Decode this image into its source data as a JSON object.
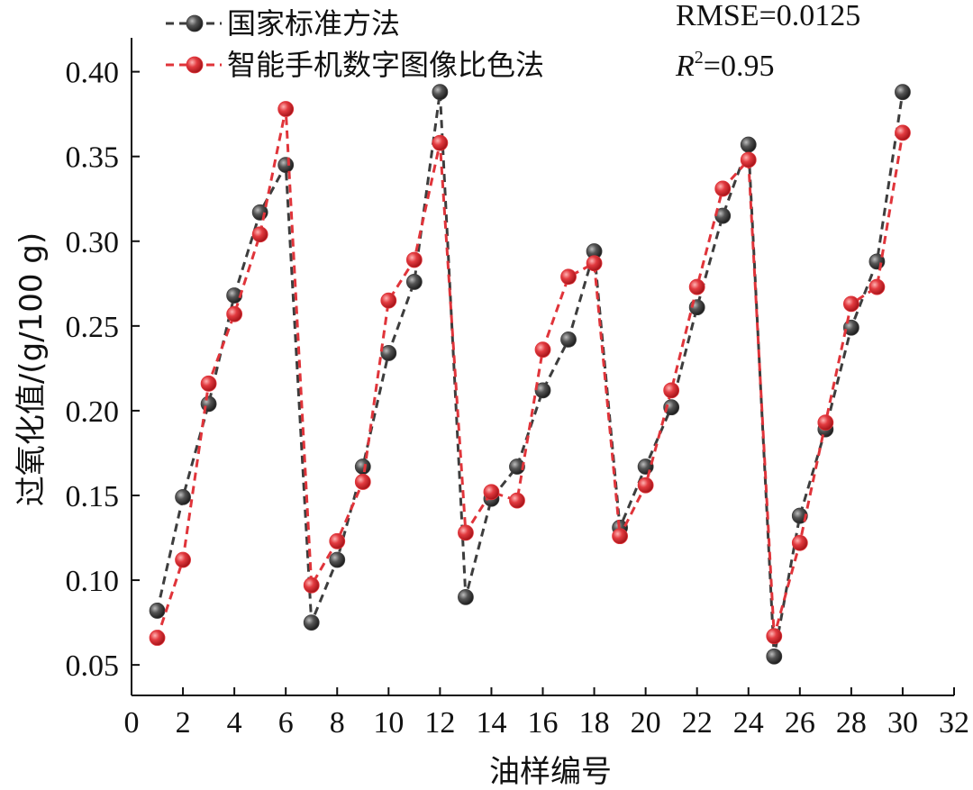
{
  "chart_data": {
    "type": "line",
    "title": "",
    "xlabel": "油样编号",
    "ylabel": "过氧化值/(g/100 g)",
    "xlim": [
      0,
      32
    ],
    "ylim": [
      0.032,
      0.42
    ],
    "xticks": [
      0,
      2,
      4,
      6,
      8,
      10,
      12,
      14,
      16,
      18,
      20,
      22,
      24,
      26,
      28,
      30,
      32
    ],
    "yticks": [
      0.05,
      0.1,
      0.15,
      0.2,
      0.25,
      0.3,
      0.35,
      0.4
    ],
    "ytick_labels": [
      "0.05",
      "0.10",
      "0.15",
      "0.20",
      "0.25",
      "0.30",
      "0.35",
      "0.40"
    ],
    "grid": false,
    "legend_position": "top-left",
    "x": [
      1,
      2,
      3,
      4,
      5,
      6,
      7,
      8,
      9,
      10,
      11,
      12,
      13,
      14,
      15,
      16,
      17,
      18,
      19,
      20,
      21,
      22,
      23,
      24,
      25,
      26,
      27,
      28,
      29,
      30
    ],
    "series": [
      {
        "name": "国家标准方法",
        "color": "#3d3d3d",
        "marker_color": "#4a4a4a",
        "values": [
          0.082,
          0.149,
          0.204,
          0.268,
          0.317,
          0.345,
          0.075,
          0.112,
          0.167,
          0.234,
          0.276,
          0.388,
          0.09,
          0.148,
          0.167,
          0.212,
          0.242,
          0.294,
          0.131,
          0.167,
          0.202,
          0.261,
          0.315,
          0.357,
          0.055,
          0.138,
          0.189,
          0.249,
          0.288,
          0.388
        ]
      },
      {
        "name": "智能手机数字图像比色法",
        "color": "#e0343a",
        "marker_color": "#e0343a",
        "values": [
          0.066,
          0.112,
          0.216,
          0.257,
          0.304,
          0.378,
          0.097,
          0.123,
          0.158,
          0.265,
          0.289,
          0.358,
          0.128,
          0.152,
          0.147,
          0.236,
          0.279,
          0.287,
          0.126,
          0.156,
          0.212,
          0.273,
          0.331,
          0.348,
          0.067,
          0.122,
          0.193,
          0.263,
          0.273,
          0.364
        ]
      }
    ],
    "annotations": {
      "rmse": "RMSE=0.0125",
      "r2_prefix": "R",
      "r2_sup": "2",
      "r2_suffix": "=0.95"
    }
  }
}
